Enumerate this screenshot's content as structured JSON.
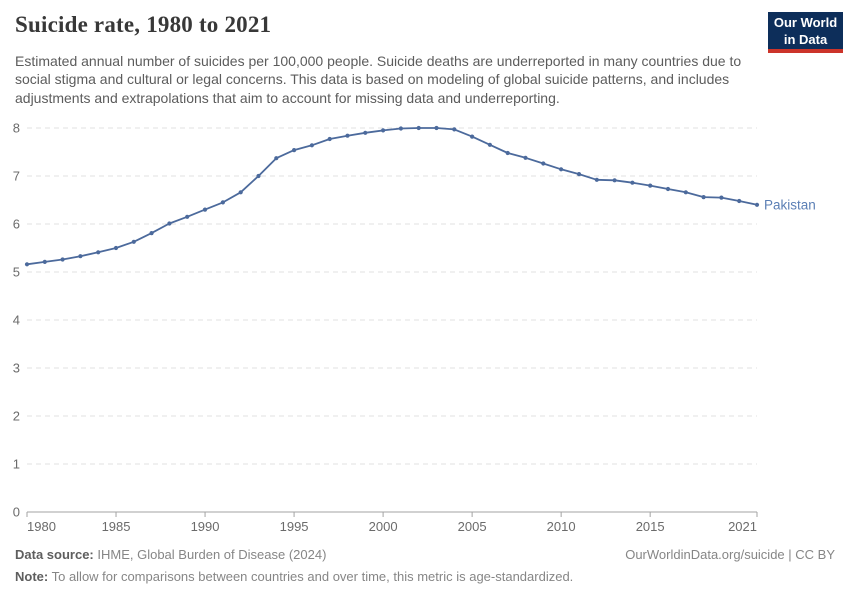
{
  "header": {
    "title": "Suicide rate, 1980 to 2021",
    "subtitle": "Estimated annual number of suicides per 100,000 people. Suicide deaths are underreported in many countries due to social stigma and cultural or legal concerns. This data is based on modeling of global suicide patterns, and includes adjustments and extrapolations that aim to account for missing data and underreporting.",
    "logo": {
      "line1": "Our World",
      "line2": "in Data"
    }
  },
  "chart_data": {
    "type": "line",
    "title": "Suicide rate, 1980 to 2021",
    "xlabel": "",
    "ylabel": "Suicides per 100,000 people",
    "ylim": [
      0,
      8
    ],
    "yticks": [
      0,
      1,
      2,
      3,
      4,
      5,
      6,
      7,
      8
    ],
    "xticks": [
      1980,
      1985,
      1990,
      1995,
      2000,
      2005,
      2010,
      2015,
      2021
    ],
    "grid": "horizontal-dashed",
    "legend_position": "end-of-line-label",
    "series": [
      {
        "name": "Pakistan",
        "color": "#4c6a9c",
        "label_color": "#5b7fb5",
        "x": [
          1980,
          1981,
          1982,
          1983,
          1984,
          1985,
          1986,
          1987,
          1988,
          1989,
          1990,
          1991,
          1992,
          1993,
          1994,
          1995,
          1996,
          1997,
          1998,
          1999,
          2000,
          2001,
          2002,
          2003,
          2004,
          2005,
          2006,
          2007,
          2008,
          2009,
          2010,
          2011,
          2012,
          2013,
          2014,
          2015,
          2016,
          2017,
          2018,
          2019,
          2020,
          2021
        ],
        "values": [
          5.16,
          5.21,
          5.26,
          5.33,
          5.41,
          5.5,
          5.63,
          5.81,
          6.01,
          6.15,
          6.3,
          6.45,
          6.66,
          7.0,
          7.37,
          7.54,
          7.64,
          7.77,
          7.84,
          7.9,
          7.95,
          7.99,
          8.0,
          8.0,
          7.97,
          7.82,
          7.65,
          7.48,
          7.38,
          7.26,
          7.14,
          7.04,
          6.92,
          6.91,
          6.86,
          6.8,
          6.73,
          6.66,
          6.56,
          6.55,
          6.48,
          6.4
        ]
      }
    ],
    "style": {
      "gridline_color": "#e0e0e0",
      "axis_color": "#a3a3a3",
      "tick_label_color": "#6b6b6b"
    }
  },
  "footer": {
    "datasource_label": "Data source:",
    "datasource_text": " IHME, Global Burden of Disease (2024)",
    "license_text": "OurWorldinData.org/suicide | CC BY",
    "note_label": "Note:",
    "note_text": " To allow for comparisons between countries and over time, this metric is age-standardized."
  }
}
